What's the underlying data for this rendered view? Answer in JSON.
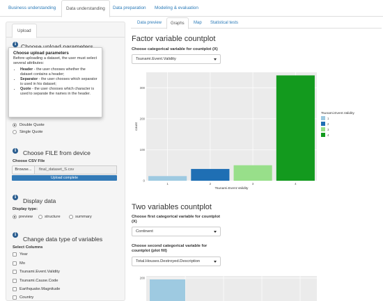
{
  "navbar": {
    "tabs": [
      "Business understanding",
      "Data understanding",
      "Data preparation",
      "Modeling & evaluation"
    ],
    "active": 1
  },
  "sidebar": {
    "tab": "Upload",
    "upload_params_title": "Choose upload parameters",
    "tooltip": {
      "title": "Choose upload parameters",
      "intro": "Before uploading a dataset, the user must select several attributes:",
      "items": [
        {
          "term": "Header",
          "text": " - the user chooses whether the dataset contains a header;"
        },
        {
          "term": "Separator",
          "text": " - the user chooses which separator is used in his dataset;"
        },
        {
          "term": "Quote",
          "text": " - the user chooses which character is used to separate the names in the header."
        }
      ]
    },
    "quote_options": [
      "Double Quote",
      "Single Quote"
    ],
    "quote_selected": 0,
    "file_title": "Choose FILE from device",
    "csv_label": "Choose CSV File",
    "browse_label": "Browse...",
    "file_name": "final_dataset_S.csv",
    "upload_status": "Upload complete",
    "display_title": "Display data",
    "display_type_label": "Display type:",
    "display_options": [
      "preview",
      "structure",
      "summary"
    ],
    "display_selected": 0,
    "change_type_title": "Change data type of variables",
    "select_columns_label": "Select Columns",
    "columns": [
      "Year",
      "Mo",
      "Tsunami.Event.Validity",
      "Tsunami.Cause.Code",
      "Earthquake.Magnitude",
      "Country"
    ]
  },
  "main": {
    "tabs": [
      "Data preview",
      "Graphs",
      "Map",
      "Statistical tests"
    ],
    "active": 1,
    "countplot_title": "Factor variable countplot",
    "countplot_select_label": "Choose categorical variable for countplot (X)",
    "countplot_select_value": "Tsunami.Event.Validity",
    "two_var_title": "Two variables countplot",
    "first_var_label": "Choose first categorical variable for countplot (X)",
    "first_var_value": "Continent",
    "second_var_label": "Choose second categorical variable for countplot (plot fill)",
    "second_var_value": "Total.Houses.Destroyed.Description"
  },
  "chart_data": [
    {
      "type": "bar",
      "categories": [
        "1",
        "2",
        "3",
        "4"
      ],
      "values": [
        15,
        38,
        50,
        340
      ],
      "colors": [
        "#9ecae1",
        "#1f6fb4",
        "#98df8a",
        "#139a1e"
      ],
      "xlabel": "Tsunami.Event.Validity",
      "ylabel": "count",
      "ylim": [
        0,
        350
      ],
      "yticks": [
        0,
        100,
        200,
        300
      ],
      "legend_title": "Tsunami.Event.Validity",
      "legend_entries": [
        "1",
        "2",
        "3",
        "4"
      ],
      "legend_position": "right",
      "grid": true
    },
    {
      "type": "bar",
      "ytick_visible": "200",
      "first_bar_color": "#9ecae1"
    }
  ],
  "colors": {
    "link": "#2a7ab8",
    "panel_bg": "#ebebeb",
    "info_icon": "#2a5d8f",
    "progress": "#337ab7"
  },
  "icons": [
    "info-icon",
    "caret-down-icon"
  ]
}
